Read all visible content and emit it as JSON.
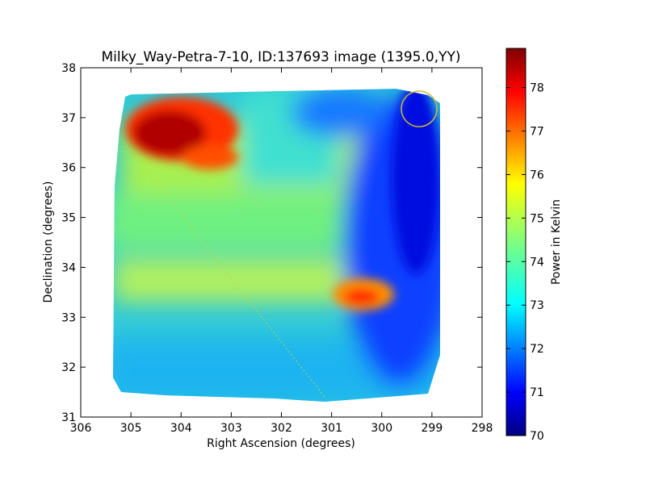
{
  "chart_data": {
    "type": "heatmap",
    "title": "Milky_Way-Petra-7-10, ID:137693 image (1395.0,YY)",
    "xlabel": "Right Ascension (degrees)",
    "ylabel": "Declination (degrees)",
    "xlim": [
      306,
      298
    ],
    "ylim": [
      31,
      38
    ],
    "xticks": [
      "306",
      "305",
      "304",
      "303",
      "302",
      "301",
      "300",
      "299",
      "298"
    ],
    "yticks": [
      "31",
      "32",
      "33",
      "34",
      "35",
      "36",
      "37",
      "38"
    ],
    "colorbar": {
      "label": "Power in Kelvin",
      "range": [
        70,
        78.9
      ],
      "ticks": [
        "70",
        "71",
        "72",
        "73",
        "74",
        "75",
        "76",
        "77",
        "78"
      ],
      "colormap": "jet"
    },
    "grid": false,
    "features": [
      {
        "name": "hot region",
        "ra": 304.2,
        "dec": 36.7,
        "power": 78.5
      },
      {
        "name": "warm spot",
        "ra": 300.5,
        "dec": 33.4,
        "power": 77.5
      },
      {
        "name": "cold region",
        "ra": 299.0,
        "dec": 35.5,
        "power": 70.5
      },
      {
        "name": "beam circle",
        "ra": 299.2,
        "dec": 37.15,
        "radius_deg": 0.36,
        "color": "#c8b838"
      }
    ]
  }
}
